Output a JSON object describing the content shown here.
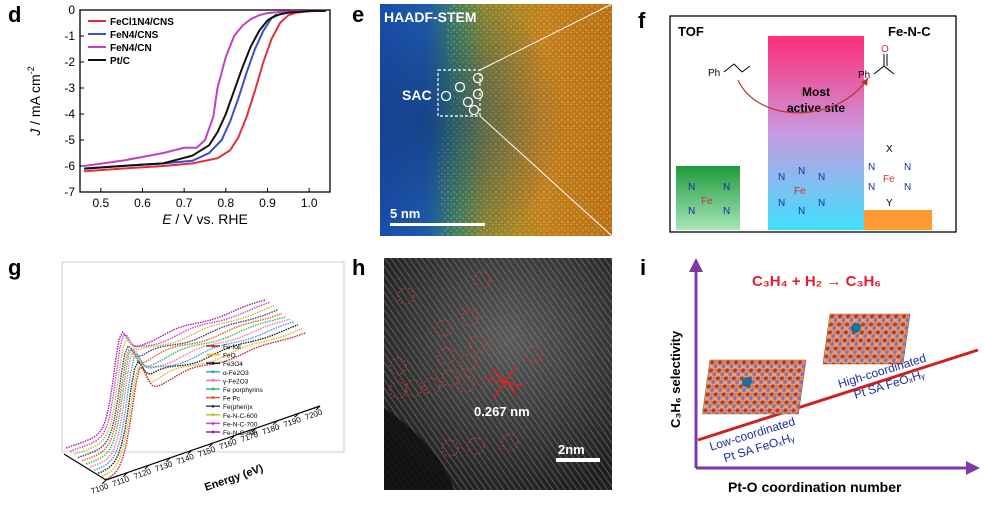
{
  "panels": {
    "d": {
      "label": "d",
      "chart_data": {
        "type": "line",
        "xlabel_italic": "E",
        "xlabel_rest": " / V vs. RHE",
        "ylabel_italic": "J",
        "ylabel_rest": " / mA cm",
        "ylabel_sup": "-2",
        "xlim": [
          0.45,
          1.05
        ],
        "ylim": [
          -7,
          0
        ],
        "xticks": [
          "0.5",
          "0.6",
          "0.7",
          "0.8",
          "0.9",
          "1.0"
        ],
        "xtick_values": [
          0.5,
          0.6,
          0.7,
          0.8,
          0.9,
          1.0
        ],
        "yticks": [
          "0",
          "-1",
          "-2",
          "-3",
          "-4",
          "-5",
          "-6",
          "-7"
        ],
        "ytick_values": [
          0,
          -1,
          -2,
          -3,
          -4,
          -5,
          -6,
          -7
        ],
        "legend": "top-left",
        "series": [
          {
            "name": "FeCl1N4/CNS",
            "color": "#e0303a",
            "x": [
              0.46,
              0.55,
              0.65,
              0.72,
              0.78,
              0.81,
              0.83,
              0.85,
              0.87,
              0.89,
              0.91,
              0.93,
              0.95,
              0.97,
              1.0,
              1.04
            ],
            "y": [
              -6.2,
              -6.1,
              -6.0,
              -5.9,
              -5.7,
              -5.4,
              -4.9,
              -4.1,
              -3.1,
              -2.0,
              -1.1,
              -0.5,
              -0.2,
              -0.1,
              -0.05,
              -0.03
            ]
          },
          {
            "name": "FeN4/CNS",
            "color": "#3a4fc8",
            "x": [
              0.46,
              0.55,
              0.65,
              0.72,
              0.76,
              0.79,
              0.81,
              0.83,
              0.85,
              0.87,
              0.89,
              0.91,
              0.94,
              0.98,
              1.04
            ],
            "y": [
              -6.1,
              -6.0,
              -5.9,
              -5.8,
              -5.5,
              -5.0,
              -4.3,
              -3.4,
              -2.4,
              -1.5,
              -0.8,
              -0.3,
              -0.1,
              -0.05,
              -0.03
            ]
          },
          {
            "name": "FeN4/CN",
            "color": "#c040c8",
            "x": [
              0.46,
              0.55,
              0.65,
              0.7,
              0.73,
              0.75,
              0.77,
              0.78,
              0.8,
              0.82,
              0.84,
              0.86,
              0.88,
              0.9,
              0.94,
              0.98,
              1.04
            ],
            "y": [
              -6.0,
              -5.8,
              -5.5,
              -5.3,
              -5.3,
              -5.0,
              -4.1,
              -3.0,
              -1.8,
              -1.0,
              -0.6,
              -0.35,
              -0.2,
              -0.12,
              -0.06,
              -0.04,
              -0.03
            ]
          },
          {
            "name": "Pt/C",
            "color": "#111111",
            "x": [
              0.46,
              0.55,
              0.65,
              0.72,
              0.76,
              0.78,
              0.8,
              0.82,
              0.84,
              0.86,
              0.88,
              0.9,
              0.92,
              0.95,
              1.0,
              1.04
            ],
            "y": [
              -6.1,
              -6.0,
              -5.9,
              -5.6,
              -5.2,
              -4.7,
              -4.0,
              -3.1,
              -2.2,
              -1.4,
              -0.8,
              -0.4,
              -0.2,
              -0.1,
              -0.04,
              -0.03
            ]
          }
        ]
      }
    },
    "e": {
      "label": "e",
      "title": "HAADF-STEM",
      "sac_label": "SAC",
      "scale": "5 nm"
    },
    "f": {
      "label": "f",
      "tof": "TOF",
      "fenc": "Fe-N-C",
      "most_active": "Most\nactive site",
      "ph": "Ph",
      "o": "O",
      "fe": "Fe",
      "n": "N",
      "x": "X",
      "y": "Y",
      "bar_colors": [
        "#2fa14a",
        "#ff3b7a",
        "#ff9a30"
      ]
    },
    "g": {
      "label": "g",
      "xlabel": "Energy (eV)",
      "ticks": [
        "7100",
        "7110",
        "7120",
        "7130",
        "7140",
        "7150",
        "7160",
        "7170",
        "7180",
        "7190",
        "7200"
      ],
      "legend": [
        "Fe foil",
        "FeO",
        "Fe3O4",
        "α-Fe2O3",
        "γ-Fe2O3",
        "Fe porphyrins",
        "Fe Pc",
        "Fe(phen)x",
        "Fe-N-C-600",
        "Fe-N-C-700",
        "Fe-N-C-800"
      ],
      "colors": [
        "#b03030",
        "#f0b020",
        "#202020",
        "#40a0e0",
        "#ff70b0",
        "#30c060",
        "#e06020",
        "#404080",
        "#c0c030",
        "#d040d0",
        "#a020a0"
      ]
    },
    "h": {
      "label": "h",
      "distance": "0.267 nm",
      "scale": "2nm"
    },
    "i": {
      "label": "i",
      "reaction": "C₃H₄ + H₂ → C₃H₆",
      "ylabel": "C₃H₆ selectivity",
      "xlabel": "Pt-O coordination number",
      "low_line1": "Low-coordinated",
      "low_line2": "Pt SA FeOₓHᵧ",
      "high_line1": "High-coordinated",
      "high_line2": "Pt SA FeOₓHᵧ"
    }
  }
}
